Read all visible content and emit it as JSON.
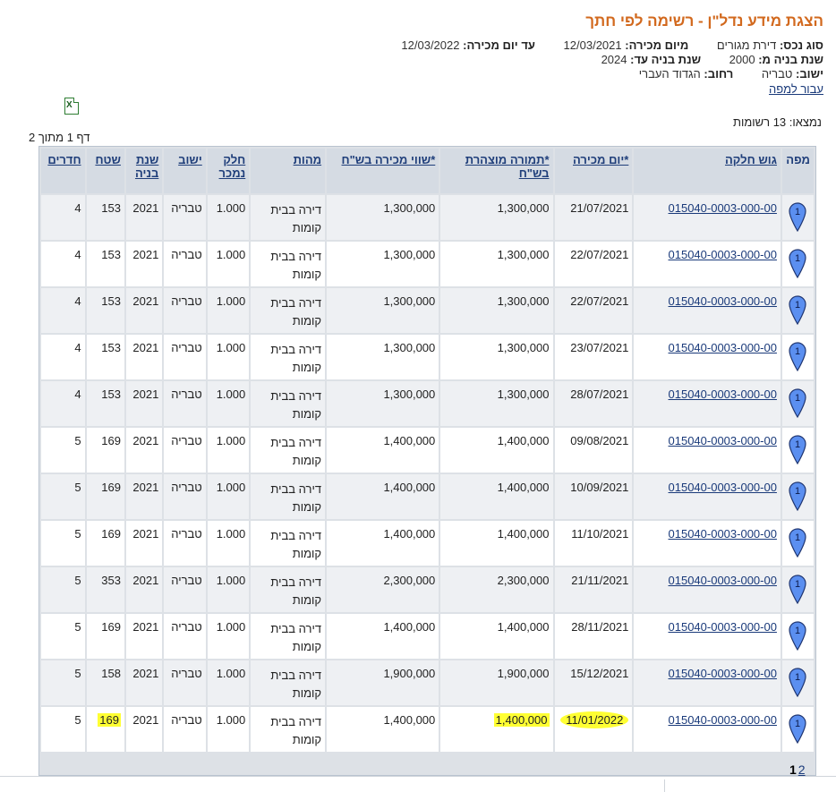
{
  "header": {
    "title": "הצגת מידע נדל\"ן - רשימה לפי חתך"
  },
  "criteria": {
    "property_type_label": "סוג נכס:",
    "property_type_value": "דירת מגורים",
    "from_sale_date_label": "מיום מכירה:",
    "from_sale_date_value": "12/03/2021",
    "to_sale_date_label": "עד יום מכירה:",
    "to_sale_date_value": "12/03/2022",
    "build_from_label": "שנת בניה מ:",
    "build_from_value": "2000",
    "build_to_label": "שנת בניה עד:",
    "build_to_value": "2024",
    "city_label": "ישוב:",
    "city_value": "טבריה",
    "street_label": "רחוב:",
    "street_value": "הגדוד העברי"
  },
  "map_link": "עבור למפה",
  "icons": {
    "export": "excel-export-icon",
    "pin": "map-pin-icon"
  },
  "results": {
    "found": "נמצאו: 13 רשומות",
    "page_info": "דף 1 מתוך 2"
  },
  "table": {
    "headers": {
      "map": "מפה",
      "parcel": "גוש חלקה",
      "sale_date": "*יום מכירה",
      "declared_price": "*תמורה מוצהרת בש\"ח",
      "sale_value": "*שווי מכירה בש\"ח",
      "nature": "מהות",
      "share": "חלק נמכר",
      "city": "ישוב",
      "build_year": "שנת בניה",
      "area": "שטח",
      "rooms": "חדרים"
    },
    "rows": [
      {
        "pin": "1",
        "parcel": "015040-0003-000-00",
        "sale_date": "21/07/2021",
        "declared_price": "1,300,000",
        "sale_value": "1,300,000",
        "nature": "דירה בבית קומות",
        "share": "1.000",
        "city": "טבריה",
        "build_year": "2021",
        "area": "153",
        "rooms": "4"
      },
      {
        "pin": "1",
        "parcel": "015040-0003-000-00",
        "sale_date": "22/07/2021",
        "declared_price": "1,300,000",
        "sale_value": "1,300,000",
        "nature": "דירה בבית קומות",
        "share": "1.000",
        "city": "טבריה",
        "build_year": "2021",
        "area": "153",
        "rooms": "4"
      },
      {
        "pin": "1",
        "parcel": "015040-0003-000-00",
        "sale_date": "22/07/2021",
        "declared_price": "1,300,000",
        "sale_value": "1,300,000",
        "nature": "דירה בבית קומות",
        "share": "1.000",
        "city": "טבריה",
        "build_year": "2021",
        "area": "153",
        "rooms": "4"
      },
      {
        "pin": "1",
        "parcel": "015040-0003-000-00",
        "sale_date": "23/07/2021",
        "declared_price": "1,300,000",
        "sale_value": "1,300,000",
        "nature": "דירה בבית קומות",
        "share": "1.000",
        "city": "טבריה",
        "build_year": "2021",
        "area": "153",
        "rooms": "4"
      },
      {
        "pin": "1",
        "parcel": "015040-0003-000-00",
        "sale_date": "28/07/2021",
        "declared_price": "1,300,000",
        "sale_value": "1,300,000",
        "nature": "דירה בבית קומות",
        "share": "1.000",
        "city": "טבריה",
        "build_year": "2021",
        "area": "153",
        "rooms": "4"
      },
      {
        "pin": "1",
        "parcel": "015040-0003-000-00",
        "sale_date": "09/08/2021",
        "declared_price": "1,400,000",
        "sale_value": "1,400,000",
        "nature": "דירה בבית קומות",
        "share": "1.000",
        "city": "טבריה",
        "build_year": "2021",
        "area": "169",
        "rooms": "5"
      },
      {
        "pin": "1",
        "parcel": "015040-0003-000-00",
        "sale_date": "10/09/2021",
        "declared_price": "1,400,000",
        "sale_value": "1,400,000",
        "nature": "דירה בבית קומות",
        "share": "1.000",
        "city": "טבריה",
        "build_year": "2021",
        "area": "169",
        "rooms": "5"
      },
      {
        "pin": "1",
        "parcel": "015040-0003-000-00",
        "sale_date": "11/10/2021",
        "declared_price": "1,400,000",
        "sale_value": "1,400,000",
        "nature": "דירה בבית קומות",
        "share": "1.000",
        "city": "טבריה",
        "build_year": "2021",
        "area": "169",
        "rooms": "5"
      },
      {
        "pin": "1",
        "parcel": "015040-0003-000-00",
        "sale_date": "21/11/2021",
        "declared_price": "2,300,000",
        "sale_value": "2,300,000",
        "nature": "דירה בבית קומות",
        "share": "1.000",
        "city": "טבריה",
        "build_year": "2021",
        "area": "353",
        "rooms": "5"
      },
      {
        "pin": "1",
        "parcel": "015040-0003-000-00",
        "sale_date": "28/11/2021",
        "declared_price": "1,400,000",
        "sale_value": "1,400,000",
        "nature": "דירה בבית קומות",
        "share": "1.000",
        "city": "טבריה",
        "build_year": "2021",
        "area": "169",
        "rooms": "5"
      },
      {
        "pin": "1",
        "parcel": "015040-0003-000-00",
        "sale_date": "15/12/2021",
        "declared_price": "1,900,000",
        "sale_value": "1,900,000",
        "nature": "דירה בבית קומות",
        "share": "1.000",
        "city": "טבריה",
        "build_year": "2021",
        "area": "158",
        "rooms": "5"
      },
      {
        "pin": "1",
        "parcel": "015040-0003-000-00",
        "sale_date": "11/01/2022",
        "declared_price": "1,400,000",
        "sale_value": "1,400,000",
        "nature": "דירה בבית קומות",
        "share": "1.000",
        "city": "טבריה",
        "build_year": "2021",
        "area": "169",
        "rooms": "5",
        "highlight": [
          "sale_date",
          "declared_price",
          "area"
        ]
      }
    ]
  },
  "colors": {
    "title": "#d2691e",
    "link": "#1a3a7a",
    "highlight": "#ffff33",
    "pin": "#5b8ff0"
  },
  "pager": {
    "current": "1",
    "next": "2"
  }
}
